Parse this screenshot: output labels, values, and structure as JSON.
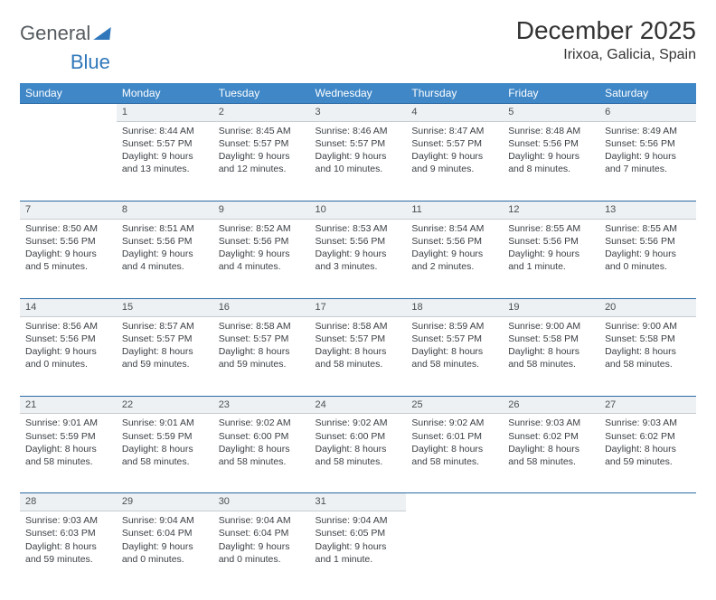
{
  "brand": {
    "part1": "General",
    "part2": "Blue"
  },
  "title": "December 2025",
  "location": "Irixoa, Galicia, Spain",
  "colors": {
    "header_bg": "#3f87c7",
    "header_text": "#ffffff",
    "daynum_bg": "#eef1f3",
    "rule": "#2b6aa3",
    "text": "#3a3f44",
    "brand_gray": "#555b60",
    "brand_blue": "#2f77ba"
  },
  "weekdays": [
    "Sunday",
    "Monday",
    "Tuesday",
    "Wednesday",
    "Thursday",
    "Friday",
    "Saturday"
  ],
  "weeks": [
    [
      null,
      {
        "n": "1",
        "sr": "Sunrise: 8:44 AM",
        "ss": "Sunset: 5:57 PM",
        "dl": "Daylight: 9 hours and 13 minutes."
      },
      {
        "n": "2",
        "sr": "Sunrise: 8:45 AM",
        "ss": "Sunset: 5:57 PM",
        "dl": "Daylight: 9 hours and 12 minutes."
      },
      {
        "n": "3",
        "sr": "Sunrise: 8:46 AM",
        "ss": "Sunset: 5:57 PM",
        "dl": "Daylight: 9 hours and 10 minutes."
      },
      {
        "n": "4",
        "sr": "Sunrise: 8:47 AM",
        "ss": "Sunset: 5:57 PM",
        "dl": "Daylight: 9 hours and 9 minutes."
      },
      {
        "n": "5",
        "sr": "Sunrise: 8:48 AM",
        "ss": "Sunset: 5:56 PM",
        "dl": "Daylight: 9 hours and 8 minutes."
      },
      {
        "n": "6",
        "sr": "Sunrise: 8:49 AM",
        "ss": "Sunset: 5:56 PM",
        "dl": "Daylight: 9 hours and 7 minutes."
      }
    ],
    [
      {
        "n": "7",
        "sr": "Sunrise: 8:50 AM",
        "ss": "Sunset: 5:56 PM",
        "dl": "Daylight: 9 hours and 5 minutes."
      },
      {
        "n": "8",
        "sr": "Sunrise: 8:51 AM",
        "ss": "Sunset: 5:56 PM",
        "dl": "Daylight: 9 hours and 4 minutes."
      },
      {
        "n": "9",
        "sr": "Sunrise: 8:52 AM",
        "ss": "Sunset: 5:56 PM",
        "dl": "Daylight: 9 hours and 4 minutes."
      },
      {
        "n": "10",
        "sr": "Sunrise: 8:53 AM",
        "ss": "Sunset: 5:56 PM",
        "dl": "Daylight: 9 hours and 3 minutes."
      },
      {
        "n": "11",
        "sr": "Sunrise: 8:54 AM",
        "ss": "Sunset: 5:56 PM",
        "dl": "Daylight: 9 hours and 2 minutes."
      },
      {
        "n": "12",
        "sr": "Sunrise: 8:55 AM",
        "ss": "Sunset: 5:56 PM",
        "dl": "Daylight: 9 hours and 1 minute."
      },
      {
        "n": "13",
        "sr": "Sunrise: 8:55 AM",
        "ss": "Sunset: 5:56 PM",
        "dl": "Daylight: 9 hours and 0 minutes."
      }
    ],
    [
      {
        "n": "14",
        "sr": "Sunrise: 8:56 AM",
        "ss": "Sunset: 5:56 PM",
        "dl": "Daylight: 9 hours and 0 minutes."
      },
      {
        "n": "15",
        "sr": "Sunrise: 8:57 AM",
        "ss": "Sunset: 5:57 PM",
        "dl": "Daylight: 8 hours and 59 minutes."
      },
      {
        "n": "16",
        "sr": "Sunrise: 8:58 AM",
        "ss": "Sunset: 5:57 PM",
        "dl": "Daylight: 8 hours and 59 minutes."
      },
      {
        "n": "17",
        "sr": "Sunrise: 8:58 AM",
        "ss": "Sunset: 5:57 PM",
        "dl": "Daylight: 8 hours and 58 minutes."
      },
      {
        "n": "18",
        "sr": "Sunrise: 8:59 AM",
        "ss": "Sunset: 5:57 PM",
        "dl": "Daylight: 8 hours and 58 minutes."
      },
      {
        "n": "19",
        "sr": "Sunrise: 9:00 AM",
        "ss": "Sunset: 5:58 PM",
        "dl": "Daylight: 8 hours and 58 minutes."
      },
      {
        "n": "20",
        "sr": "Sunrise: 9:00 AM",
        "ss": "Sunset: 5:58 PM",
        "dl": "Daylight: 8 hours and 58 minutes."
      }
    ],
    [
      {
        "n": "21",
        "sr": "Sunrise: 9:01 AM",
        "ss": "Sunset: 5:59 PM",
        "dl": "Daylight: 8 hours and 58 minutes."
      },
      {
        "n": "22",
        "sr": "Sunrise: 9:01 AM",
        "ss": "Sunset: 5:59 PM",
        "dl": "Daylight: 8 hours and 58 minutes."
      },
      {
        "n": "23",
        "sr": "Sunrise: 9:02 AM",
        "ss": "Sunset: 6:00 PM",
        "dl": "Daylight: 8 hours and 58 minutes."
      },
      {
        "n": "24",
        "sr": "Sunrise: 9:02 AM",
        "ss": "Sunset: 6:00 PM",
        "dl": "Daylight: 8 hours and 58 minutes."
      },
      {
        "n": "25",
        "sr": "Sunrise: 9:02 AM",
        "ss": "Sunset: 6:01 PM",
        "dl": "Daylight: 8 hours and 58 minutes."
      },
      {
        "n": "26",
        "sr": "Sunrise: 9:03 AM",
        "ss": "Sunset: 6:02 PM",
        "dl": "Daylight: 8 hours and 58 minutes."
      },
      {
        "n": "27",
        "sr": "Sunrise: 9:03 AM",
        "ss": "Sunset: 6:02 PM",
        "dl": "Daylight: 8 hours and 59 minutes."
      }
    ],
    [
      {
        "n": "28",
        "sr": "Sunrise: 9:03 AM",
        "ss": "Sunset: 6:03 PM",
        "dl": "Daylight: 8 hours and 59 minutes."
      },
      {
        "n": "29",
        "sr": "Sunrise: 9:04 AM",
        "ss": "Sunset: 6:04 PM",
        "dl": "Daylight: 9 hours and 0 minutes."
      },
      {
        "n": "30",
        "sr": "Sunrise: 9:04 AM",
        "ss": "Sunset: 6:04 PM",
        "dl": "Daylight: 9 hours and 0 minutes."
      },
      {
        "n": "31",
        "sr": "Sunrise: 9:04 AM",
        "ss": "Sunset: 6:05 PM",
        "dl": "Daylight: 9 hours and 1 minute."
      },
      null,
      null,
      null
    ]
  ]
}
